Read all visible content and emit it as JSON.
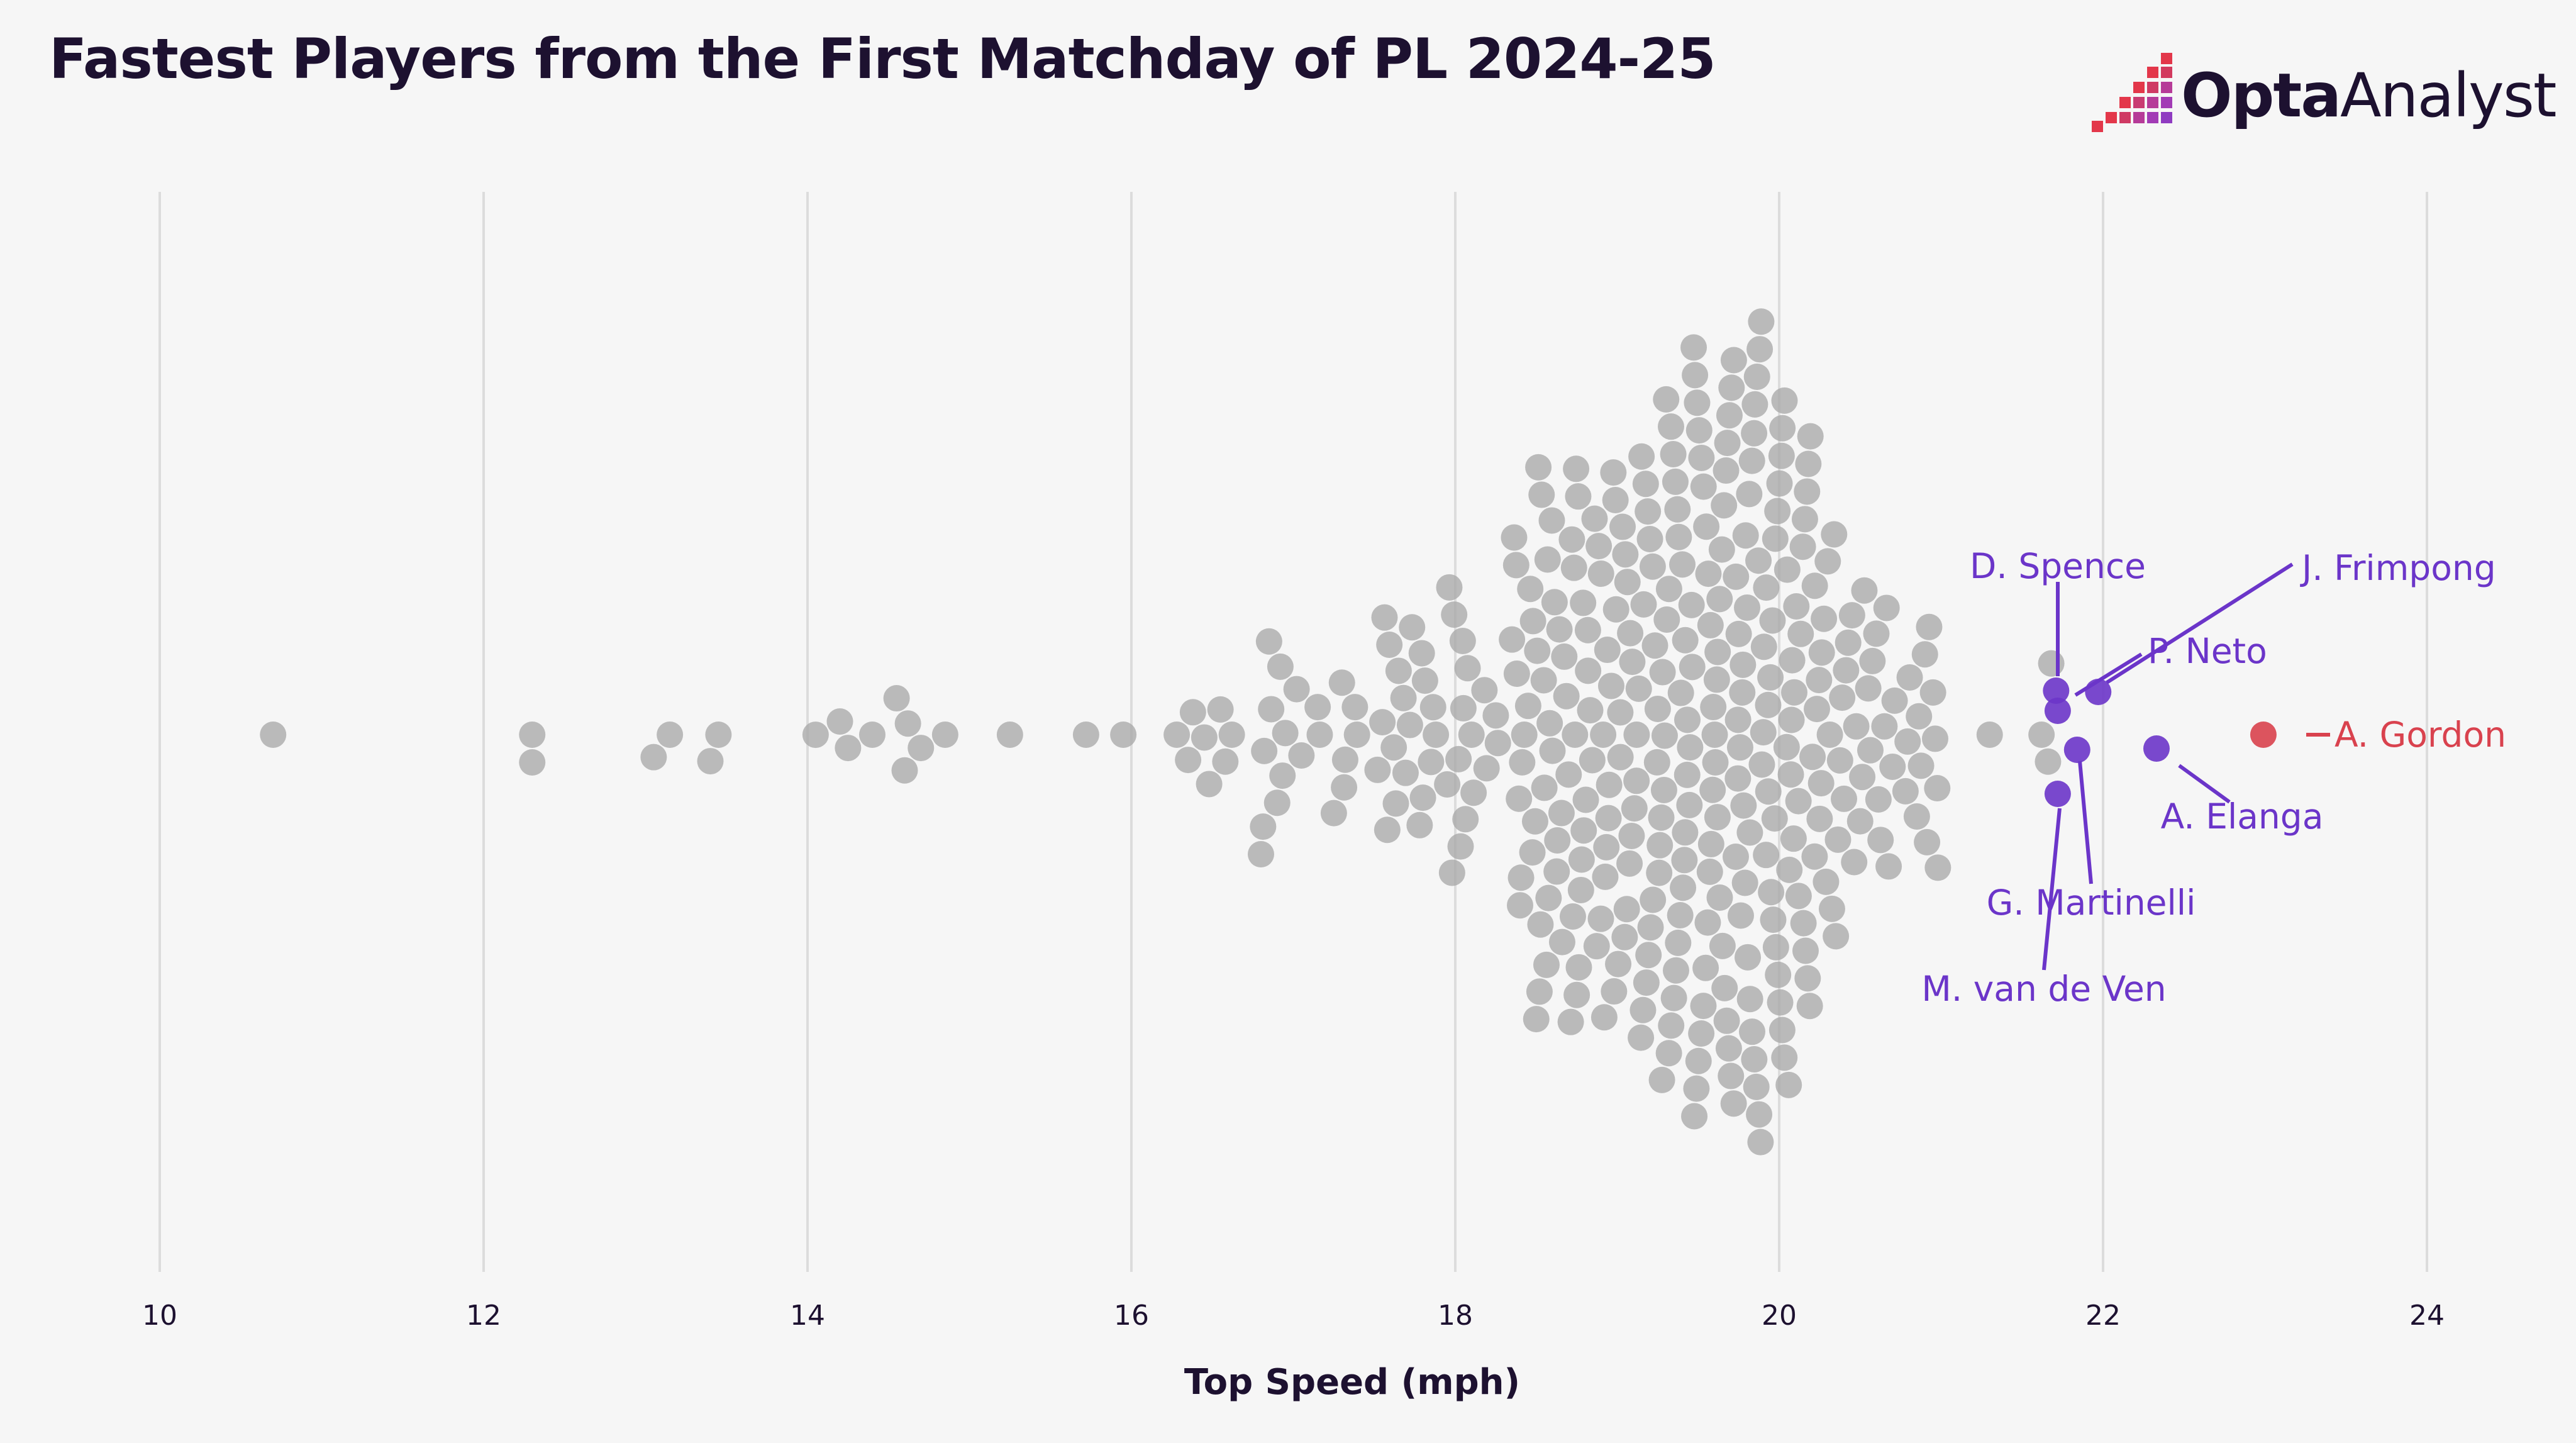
{
  "title": "Fastest Players from the First Matchday of PL 2024-25",
  "brand": {
    "bold": "Opta",
    "light": "Analyst"
  },
  "colors": {
    "background": "#f6f6f6",
    "grid": "#dcdcdc",
    "dot": "#a9a9a9",
    "highlight": "#6b35c9",
    "fastest": "#d9424e",
    "text": "#1d1130",
    "brand_red": "#e3374a",
    "brand_purple": "#a23bb5"
  },
  "chart_data": {
    "type": "scatter",
    "subtype": "beeswarm",
    "xlabel": "Top Speed (mph)",
    "ylabel": "",
    "xlim": [
      9.5,
      24.5
    ],
    "xticks": [
      10,
      12,
      14,
      16,
      18,
      20,
      22,
      24
    ],
    "grid": true,
    "highlighted": [
      {
        "name": "A. Gordon",
        "value": 22.99,
        "group": "fastest"
      },
      {
        "name": "A. Elanga",
        "value": 22.33,
        "group": "highlight"
      },
      {
        "name": "J. Frimpong",
        "value": 21.97,
        "group": "highlight"
      },
      {
        "name": "G. Martinelli",
        "value": 21.84,
        "group": "highlight"
      },
      {
        "name": "D. Spence",
        "value": 21.71,
        "group": "highlight"
      },
      {
        "name": "M. van de Ven",
        "value": 21.72,
        "group": "highlight"
      },
      {
        "name": "P. Neto",
        "value": 21.72,
        "group": "highlight"
      }
    ],
    "others": [
      10.7,
      12.3,
      12.3,
      13.05,
      13.15,
      13.4,
      13.45,
      14.05,
      14.2,
      14.25,
      14.4,
      14.55,
      14.6,
      14.62,
      14.7,
      14.85,
      15.25,
      15.72,
      15.95,
      16.28,
      16.35,
      16.38,
      16.45,
      16.48,
      16.55,
      16.58,
      16.62,
      16.8,
      16.82,
      16.85,
      16.9,
      16.92,
      16.95,
      17.02,
      17.05,
      17.15,
      17.25,
      17.3,
      17.32,
      17.38,
      17.52,
      17.55,
      17.58,
      17.62,
      17.65,
      17.68,
      17.72,
      17.78,
      17.8,
      17.85,
      17.88,
      17.95,
      17.98,
      18.02,
      18.05,
      18.1,
      18.18,
      18.25,
      18.35,
      18.38,
      18.4,
      18.45,
      18.48,
      18.5,
      18.52,
      18.55,
      18.57,
      18.6,
      18.63,
      18.66,
      18.7,
      18.72,
      18.75,
      18.78,
      18.82,
      18.86,
      18.9,
      18.92,
      18.95,
      18.98,
      19.02,
      19.05,
      19.08,
      19.12,
      19.15,
      19.18,
      19.22,
      19.25,
      19.28,
      19.32,
      19.35,
      19.38,
      19.42,
      19.45,
      19.48,
      19.52,
      19.55,
      19.58,
      19.62,
      19.65,
      19.68,
      19.72,
      19.75,
      19.78,
      19.82,
      19.85,
      19.88,
      19.92,
      19.95,
      19.98,
      20.02,
      20.05,
      20.08,
      20.12,
      20.15,
      20.18,
      20.22,
      20.25,
      20.3,
      20.35,
      20.4,
      20.45,
      20.5,
      20.55,
      20.6,
      20.65,
      20.7,
      20.78,
      20.85,
      20.9,
      20.95,
      20.98,
      21.3,
      21.62,
      21.66,
      21.68
    ],
    "others_note_count_by_value": [
      1,
      1,
      1,
      1,
      1,
      1,
      1,
      1,
      1,
      1,
      1,
      1,
      1,
      1,
      1,
      1,
      1,
      1,
      1,
      1,
      1,
      1,
      1,
      1,
      1,
      1,
      1,
      2,
      1,
      2,
      1,
      2,
      1,
      1,
      1,
      2,
      1,
      2,
      1,
      2,
      1,
      2,
      2,
      2,
      1,
      2,
      2,
      2,
      2,
      2,
      1,
      2,
      2,
      3,
      3,
      2,
      2,
      2,
      3,
      3,
      3,
      3,
      3,
      3,
      3,
      3,
      3,
      3,
      3,
      3,
      4,
      4,
      4,
      4,
      3,
      4,
      4,
      3,
      4,
      4,
      4,
      4,
      4,
      4,
      5,
      4,
      5,
      5,
      5,
      5,
      6,
      5,
      5,
      5,
      5,
      5,
      6,
      5,
      5,
      5,
      6,
      5,
      6,
      6,
      6,
      5,
      5,
      5,
      6,
      5,
      5,
      4,
      4,
      5,
      4,
      4,
      4,
      4,
      4,
      4,
      3,
      3,
      3,
      3,
      3,
      3,
      2,
      3,
      3,
      3,
      3,
      1,
      1,
      1,
      1,
      1
    ]
  }
}
